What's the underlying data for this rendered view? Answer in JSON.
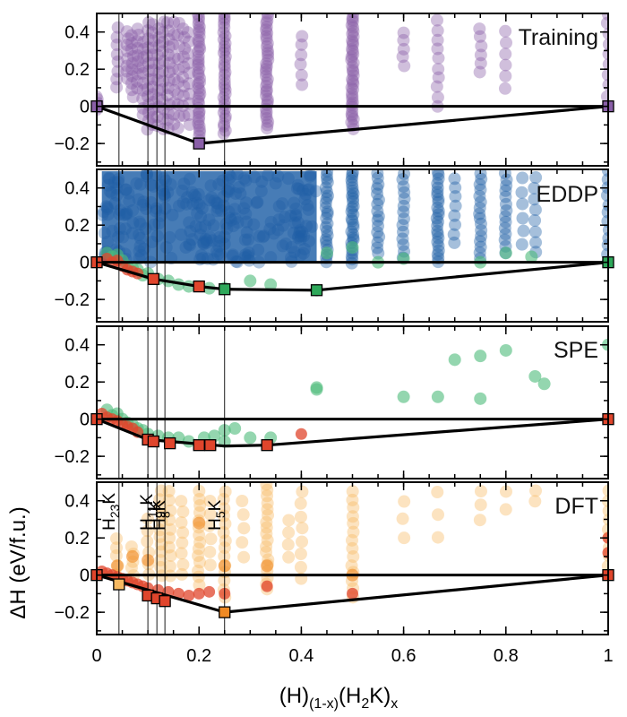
{
  "chart_data": {
    "type": "scatter",
    "xlabel": "(H)(1-x)(H2K)x",
    "xlabel_parts": {
      "base1": "(H)",
      "sub1": "(1-x)",
      "base2": "(H",
      "sub2": "2",
      "base3": "K)",
      "sub3": "x"
    },
    "ylabel": "ΔH (eV/f.u.)",
    "xlim": [
      0,
      1
    ],
    "xticks": [
      0,
      0.2,
      0.4,
      0.6,
      0.8,
      1
    ],
    "xtick_labels": [
      "0",
      "0.2",
      "0.4",
      "0.6",
      "0.8",
      "1"
    ],
    "ylim": [
      -0.32,
      0.5
    ],
    "yticks": [
      -0.2,
      0,
      0.2,
      0.4
    ],
    "ytick_labels": [
      "−0.2",
      "0",
      "0.2",
      "0.4"
    ],
    "reference_lines_x": [
      0.0435,
      0.1,
      0.1176,
      0.1333,
      0.25
    ],
    "phase_labels": [
      {
        "x": 0.0435,
        "base": "H",
        "sub": "23",
        "tail": "K"
      },
      {
        "x": 0.1176,
        "base": "H",
        "sub": "11",
        "tail": "K"
      },
      {
        "x": 0.1333,
        "base": "H",
        "sub": "9",
        "tail": "K"
      },
      {
        "x": 0.1429,
        "base": "H",
        "sub": "8",
        "tail": "K"
      },
      {
        "x": 0.25,
        "base": "H",
        "sub": "5",
        "tail": "K"
      }
    ],
    "panels": [
      {
        "title": "Training",
        "point_color": "#8a5fa8",
        "clusters": [
          {
            "x": 0.0,
            "ymin": -0.02,
            "ymax": 0.05,
            "n": 6
          },
          {
            "x": 0.04,
            "ymin": 0.1,
            "ymax": 0.42,
            "n": 8
          },
          {
            "x": 0.06,
            "ymin": 0.15,
            "ymax": 0.4,
            "n": 8
          },
          {
            "x": 0.07,
            "ymin": 0.05,
            "ymax": 0.38,
            "n": 10
          },
          {
            "x": 0.08,
            "ymin": 0.1,
            "ymax": 0.42,
            "n": 10
          },
          {
            "x": 0.09,
            "ymin": -0.05,
            "ymax": 0.35,
            "n": 10
          },
          {
            "x": 0.1,
            "ymin": -0.12,
            "ymax": 0.45,
            "n": 14
          },
          {
            "x": 0.11,
            "ymin": -0.1,
            "ymax": 0.44,
            "n": 14
          },
          {
            "x": 0.12,
            "ymin": -0.1,
            "ymax": 0.42,
            "n": 12
          },
          {
            "x": 0.13,
            "ymin": -0.12,
            "ymax": 0.45,
            "n": 12
          },
          {
            "x": 0.14,
            "ymin": -0.12,
            "ymax": 0.45,
            "n": 14
          },
          {
            "x": 0.15,
            "ymin": -0.1,
            "ymax": 0.45,
            "n": 10
          },
          {
            "x": 0.16,
            "ymin": -0.12,
            "ymax": 0.45,
            "n": 10
          },
          {
            "x": 0.17,
            "ymin": -0.05,
            "ymax": 0.42,
            "n": 10
          },
          {
            "x": 0.18,
            "ymin": -0.1,
            "ymax": 0.4,
            "n": 10
          },
          {
            "x": 0.2,
            "ymin": -0.18,
            "ymax": 0.5,
            "n": 40
          },
          {
            "x": 0.25,
            "ymin": -0.15,
            "ymax": 0.5,
            "n": 34
          },
          {
            "x": 0.333,
            "ymin": -0.12,
            "ymax": 0.5,
            "n": 36
          },
          {
            "x": 0.4,
            "ymin": 0.12,
            "ymax": 0.38,
            "n": 6
          },
          {
            "x": 0.5,
            "ymin": -0.12,
            "ymax": 0.5,
            "n": 40
          },
          {
            "x": 0.6,
            "ymin": 0.22,
            "ymax": 0.4,
            "n": 5
          },
          {
            "x": 0.667,
            "ymin": 0.0,
            "ymax": 0.46,
            "n": 10
          },
          {
            "x": 0.75,
            "ymin": 0.18,
            "ymax": 0.42,
            "n": 6
          },
          {
            "x": 0.8,
            "ymin": 0.1,
            "ymax": 0.4,
            "n": 6
          },
          {
            "x": 1.0,
            "ymin": 0.0,
            "ymax": 0.5,
            "n": 10
          }
        ],
        "hull": [
          [
            0,
            0
          ],
          [
            0.2,
            -0.2
          ],
          [
            1,
            0
          ]
        ],
        "hull_points": [
          {
            "x": 0.0,
            "y": 0.0,
            "color": "#8a5fa8"
          },
          {
            "x": 0.2,
            "y": -0.2,
            "color": "#8a5fa8"
          },
          {
            "x": 1.0,
            "y": 0.0,
            "color": "#8a5fa8"
          }
        ]
      },
      {
        "title": "EDDP",
        "point_color": "#1f5fa6",
        "band": {
          "xmin": 0.01,
          "xmax": 0.43,
          "ymin": 0.0,
          "ymax": 0.49
        },
        "clusters": [
          {
            "x": 0.45,
            "ymin": 0.0,
            "ymax": 0.49,
            "n": 24
          },
          {
            "x": 0.5,
            "ymin": 0.0,
            "ymax": 0.49,
            "n": 30
          },
          {
            "x": 0.55,
            "ymin": 0.05,
            "ymax": 0.48,
            "n": 16
          },
          {
            "x": 0.6,
            "ymin": 0.02,
            "ymax": 0.48,
            "n": 14
          },
          {
            "x": 0.667,
            "ymin": 0.0,
            "ymax": 0.49,
            "n": 24
          },
          {
            "x": 0.7,
            "ymin": 0.1,
            "ymax": 0.45,
            "n": 8
          },
          {
            "x": 0.75,
            "ymin": 0.02,
            "ymax": 0.48,
            "n": 16
          },
          {
            "x": 0.8,
            "ymin": 0.05,
            "ymax": 0.48,
            "n": 14
          },
          {
            "x": 0.833,
            "ymin": 0.1,
            "ymax": 0.45,
            "n": 6
          },
          {
            "x": 0.857,
            "ymin": 0.05,
            "ymax": 0.46,
            "n": 8
          },
          {
            "x": 1.0,
            "ymin": 0.0,
            "ymax": 0.49,
            "n": 12
          }
        ],
        "secondary_color": "#4dbb7a",
        "secondary_points": [
          [
            0.02,
            0.05
          ],
          [
            0.03,
            0.03
          ],
          [
            0.04,
            0.04
          ],
          [
            0.05,
            0.01
          ],
          [
            0.06,
            -0.02
          ],
          [
            0.07,
            -0.03
          ],
          [
            0.08,
            -0.04
          ],
          [
            0.09,
            -0.07
          ],
          [
            0.1,
            -0.06
          ],
          [
            0.12,
            -0.09
          ],
          [
            0.14,
            -0.1
          ],
          [
            0.16,
            -0.12
          ],
          [
            0.18,
            -0.13
          ],
          [
            0.22,
            -0.14
          ],
          [
            0.25,
            -0.14
          ],
          [
            0.3,
            -0.1
          ],
          [
            0.34,
            -0.12
          ],
          [
            0.43,
            -0.15
          ],
          [
            0.45,
            0.05
          ],
          [
            0.5,
            0.08
          ],
          [
            0.55,
            0.0
          ],
          [
            0.6,
            0.02
          ],
          [
            0.75,
            0.0
          ],
          [
            0.8,
            0.05
          ],
          [
            0.85,
            0.03
          ]
        ],
        "tertiary_color": "#e0452c",
        "tertiary_points": [
          [
            0.02,
            0.02
          ],
          [
            0.03,
            0.0
          ],
          [
            0.04,
            0.01
          ],
          [
            0.05,
            -0.02
          ],
          [
            0.06,
            -0.04
          ],
          [
            0.07,
            -0.05
          ],
          [
            0.08,
            -0.06
          ]
        ],
        "hull": [
          [
            0,
            0
          ],
          [
            0.111,
            -0.09
          ],
          [
            0.2,
            -0.13
          ],
          [
            0.25,
            -0.145
          ],
          [
            0.43,
            -0.15
          ],
          [
            1,
            0
          ]
        ],
        "hull_points": [
          {
            "x": 0.0,
            "y": 0.0,
            "color": "#e0452c"
          },
          {
            "x": 0.111,
            "y": -0.09,
            "color": "#e0452c"
          },
          {
            "x": 0.2,
            "y": -0.13,
            "color": "#e0452c"
          },
          {
            "x": 0.25,
            "y": -0.145,
            "color": "#2ea85a"
          },
          {
            "x": 0.43,
            "y": -0.15,
            "color": "#2ea85a"
          },
          {
            "x": 1.0,
            "y": 0.0,
            "color": "#2ea85a"
          }
        ]
      },
      {
        "title": "SPE",
        "point_color": "#4dbb7a",
        "secondary_points": [
          [
            0.02,
            0.05
          ],
          [
            0.03,
            0.02
          ],
          [
            0.04,
            0.03
          ],
          [
            0.05,
            0.0
          ],
          [
            0.06,
            -0.02
          ],
          [
            0.07,
            -0.03
          ],
          [
            0.08,
            -0.05
          ],
          [
            0.09,
            -0.06
          ],
          [
            0.1,
            -0.08
          ],
          [
            0.12,
            -0.09
          ],
          [
            0.14,
            -0.1
          ],
          [
            0.16,
            -0.1
          ],
          [
            0.18,
            -0.12
          ],
          [
            0.21,
            -0.1
          ],
          [
            0.23,
            -0.09
          ],
          [
            0.25,
            -0.12
          ],
          [
            0.25,
            -0.06
          ],
          [
            0.27,
            -0.05
          ],
          [
            0.3,
            -0.1
          ],
          [
            0.34,
            -0.1
          ],
          [
            0.43,
            0.17
          ],
          [
            0.43,
            0.16
          ],
          [
            0.6,
            0.12
          ],
          [
            0.667,
            0.12
          ],
          [
            0.7,
            0.32
          ],
          [
            0.75,
            0.11
          ],
          [
            0.75,
            0.34
          ],
          [
            0.8,
            0.37
          ],
          [
            0.857,
            0.23
          ],
          [
            0.875,
            0.19
          ],
          [
            1.0,
            0.4
          ]
        ],
        "secondary_color": "#4dbb7a",
        "tertiary_color": "#e0452c",
        "tertiary_points": [
          [
            0.01,
            0.03
          ],
          [
            0.02,
            0.01
          ],
          [
            0.03,
            0.0
          ],
          [
            0.04,
            -0.01
          ],
          [
            0.05,
            -0.03
          ],
          [
            0.06,
            -0.04
          ],
          [
            0.07,
            -0.05
          ],
          [
            0.08,
            -0.07
          ],
          [
            0.4,
            -0.08
          ]
        ],
        "hull": [
          [
            0,
            0
          ],
          [
            0.1,
            -0.11
          ],
          [
            0.25,
            -0.145
          ],
          [
            0.333,
            -0.14
          ],
          [
            1,
            0
          ]
        ],
        "hull_points": [
          {
            "x": 0.0,
            "y": 0.0,
            "color": "#e0452c"
          },
          {
            "x": 0.1,
            "y": -0.11,
            "color": "#e0452c"
          },
          {
            "x": 0.111,
            "y": -0.12,
            "color": "#e0452c"
          },
          {
            "x": 0.143,
            "y": -0.13,
            "color": "#e0452c"
          },
          {
            "x": 0.2,
            "y": -0.14,
            "color": "#e0452c"
          },
          {
            "x": 0.222,
            "y": -0.14,
            "color": "#e0452c"
          },
          {
            "x": 0.333,
            "y": -0.14,
            "color": "#e0452c"
          },
          {
            "x": 1.0,
            "y": 0.0,
            "color": "#e0452c"
          }
        ]
      },
      {
        "title": "DFT",
        "point_color": "#f7b961",
        "clusters": [
          {
            "x": 0.04,
            "ymin": 0.0,
            "ymax": 0.2,
            "n": 5
          },
          {
            "x": 0.07,
            "ymin": 0.0,
            "ymax": 0.15,
            "n": 5
          },
          {
            "x": 0.1,
            "ymin": 0.0,
            "ymax": 0.3,
            "n": 6
          },
          {
            "x": 0.125,
            "ymin": 0.0,
            "ymax": 0.45,
            "n": 12
          },
          {
            "x": 0.143,
            "ymin": 0.0,
            "ymax": 0.45,
            "n": 10
          },
          {
            "x": 0.167,
            "ymin": 0.0,
            "ymax": 0.4,
            "n": 8
          },
          {
            "x": 0.2,
            "ymin": -0.05,
            "ymax": 0.45,
            "n": 14
          },
          {
            "x": 0.222,
            "ymin": 0.05,
            "ymax": 0.4,
            "n": 6
          },
          {
            "x": 0.25,
            "ymin": -0.12,
            "ymax": 0.45,
            "n": 14
          },
          {
            "x": 0.286,
            "ymin": 0.1,
            "ymax": 0.4,
            "n": 5
          },
          {
            "x": 0.333,
            "ymin": -0.08,
            "ymax": 0.49,
            "n": 18
          },
          {
            "x": 0.375,
            "ymin": 0.1,
            "ymax": 0.3,
            "n": 4
          },
          {
            "x": 0.4,
            "ymin": -0.02,
            "ymax": 0.45,
            "n": 8
          },
          {
            "x": 0.5,
            "ymin": -0.12,
            "ymax": 0.45,
            "n": 14
          },
          {
            "x": 0.6,
            "ymin": 0.2,
            "ymax": 0.4,
            "n": 3
          },
          {
            "x": 0.667,
            "ymin": 0.2,
            "ymax": 0.45,
            "n": 3
          },
          {
            "x": 0.75,
            "ymin": 0.3,
            "ymax": 0.45,
            "n": 3
          },
          {
            "x": 0.8,
            "ymin": 0.35,
            "ymax": 0.45,
            "n": 2
          },
          {
            "x": 0.857,
            "ymin": 0.4,
            "ymax": 0.45,
            "n": 2
          },
          {
            "x": 1.0,
            "ymin": 0.0,
            "ymax": 0.45,
            "n": 10
          }
        ],
        "secondary_color": "#f08a24",
        "secondary_points": [
          [
            0.04,
            0.05
          ],
          [
            0.07,
            0.1
          ],
          [
            0.1,
            0.08
          ],
          [
            0.2,
            0.28
          ],
          [
            0.25,
            0.05
          ],
          [
            0.5,
            0.0
          ],
          [
            0.333,
            0.05
          ]
        ],
        "tertiary_color": "#e0452c",
        "tertiary_points": [
          [
            0.01,
            0.02
          ],
          [
            0.02,
            0.01
          ],
          [
            0.03,
            0.0
          ],
          [
            0.04,
            -0.01
          ],
          [
            0.05,
            -0.02
          ],
          [
            0.06,
            -0.03
          ],
          [
            0.07,
            -0.04
          ],
          [
            0.08,
            -0.05
          ],
          [
            0.09,
            -0.06
          ],
          [
            0.1,
            -0.07
          ],
          [
            0.12,
            -0.08
          ],
          [
            0.14,
            -0.09
          ],
          [
            0.16,
            -0.1
          ],
          [
            0.18,
            -0.11
          ],
          [
            0.2,
            -0.1
          ],
          [
            0.22,
            -0.09
          ],
          [
            0.25,
            -0.1
          ],
          [
            0.333,
            -0.06
          ],
          [
            0.5,
            -0.1
          ],
          [
            1.0,
            0.2
          ],
          [
            1.0,
            0.12
          ]
        ],
        "hull": [
          [
            0,
            0
          ],
          [
            0.25,
            -0.2
          ],
          [
            1,
            0
          ]
        ],
        "hull_points": [
          {
            "x": 0.0,
            "y": 0.0,
            "color": "#e0452c"
          },
          {
            "x": 0.0435,
            "y": -0.05,
            "color": "#f7b961"
          },
          {
            "x": 0.1,
            "y": -0.11,
            "color": "#e0452c"
          },
          {
            "x": 0.1176,
            "y": -0.125,
            "color": "#e0452c"
          },
          {
            "x": 0.1333,
            "y": -0.14,
            "color": "#e0452c"
          },
          {
            "x": 0.25,
            "y": -0.2,
            "color": "#f08a24"
          },
          {
            "x": 1.0,
            "y": 0.0,
            "color": "#e0452c"
          }
        ]
      }
    ]
  }
}
